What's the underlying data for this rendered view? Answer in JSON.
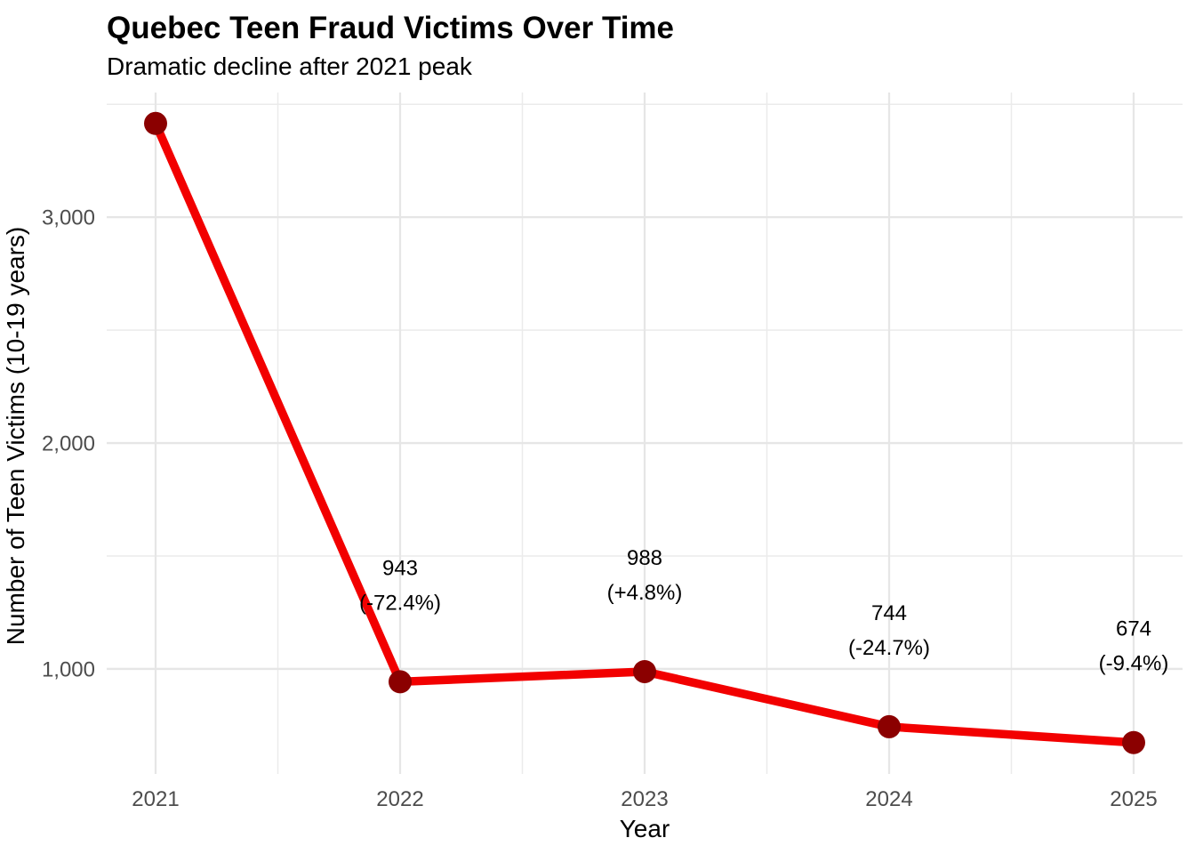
{
  "chart_data": {
    "type": "line",
    "title": "Quebec Teen Fraud Victims Over Time",
    "subtitle": "Dramatic decline after 2021 peak",
    "xlabel": "Year",
    "ylabel": "Number of Teen Victims (10-19 years)",
    "x": [
      2021,
      2022,
      2023,
      2024,
      2025
    ],
    "values": [
      3415,
      943,
      988,
      744,
      674
    ],
    "point_labels": [
      {
        "x": 2022,
        "value_text": "943",
        "pct_text": "(-72.4%)"
      },
      {
        "x": 2023,
        "value_text": "988",
        "pct_text": "(+4.8%)"
      },
      {
        "x": 2024,
        "value_text": "744",
        "pct_text": "(-24.7%)"
      },
      {
        "x": 2025,
        "value_text": "674",
        "pct_text": "(-9.4%)"
      }
    ],
    "xlim": [
      2020.8,
      2025.2
    ],
    "ylim": [
      535,
      3552
    ],
    "x_major_ticks": [
      {
        "v": 2021,
        "label": "2021"
      },
      {
        "v": 2022,
        "label": "2022"
      },
      {
        "v": 2023,
        "label": "2023"
      },
      {
        "v": 2024,
        "label": "2024"
      },
      {
        "v": 2025,
        "label": "2025"
      }
    ],
    "x_minor_ticks": [
      2021.5,
      2022.5,
      2023.5,
      2024.5
    ],
    "y_major_ticks": [
      {
        "v": 1000,
        "label": "1,000"
      },
      {
        "v": 2000,
        "label": "2,000"
      },
      {
        "v": 3000,
        "label": "3,000"
      }
    ],
    "y_minor_ticks": [
      1500,
      2500,
      3500
    ],
    "grid": true,
    "legend": "none",
    "colors": {
      "line": "#F20000",
      "point": "#8B0000",
      "grid_major": "#E6E6E6",
      "grid_minor": "#EBEBEB",
      "tick_label": "#4D4D4D",
      "text": "#000000",
      "background": "#FFFFFF"
    }
  }
}
